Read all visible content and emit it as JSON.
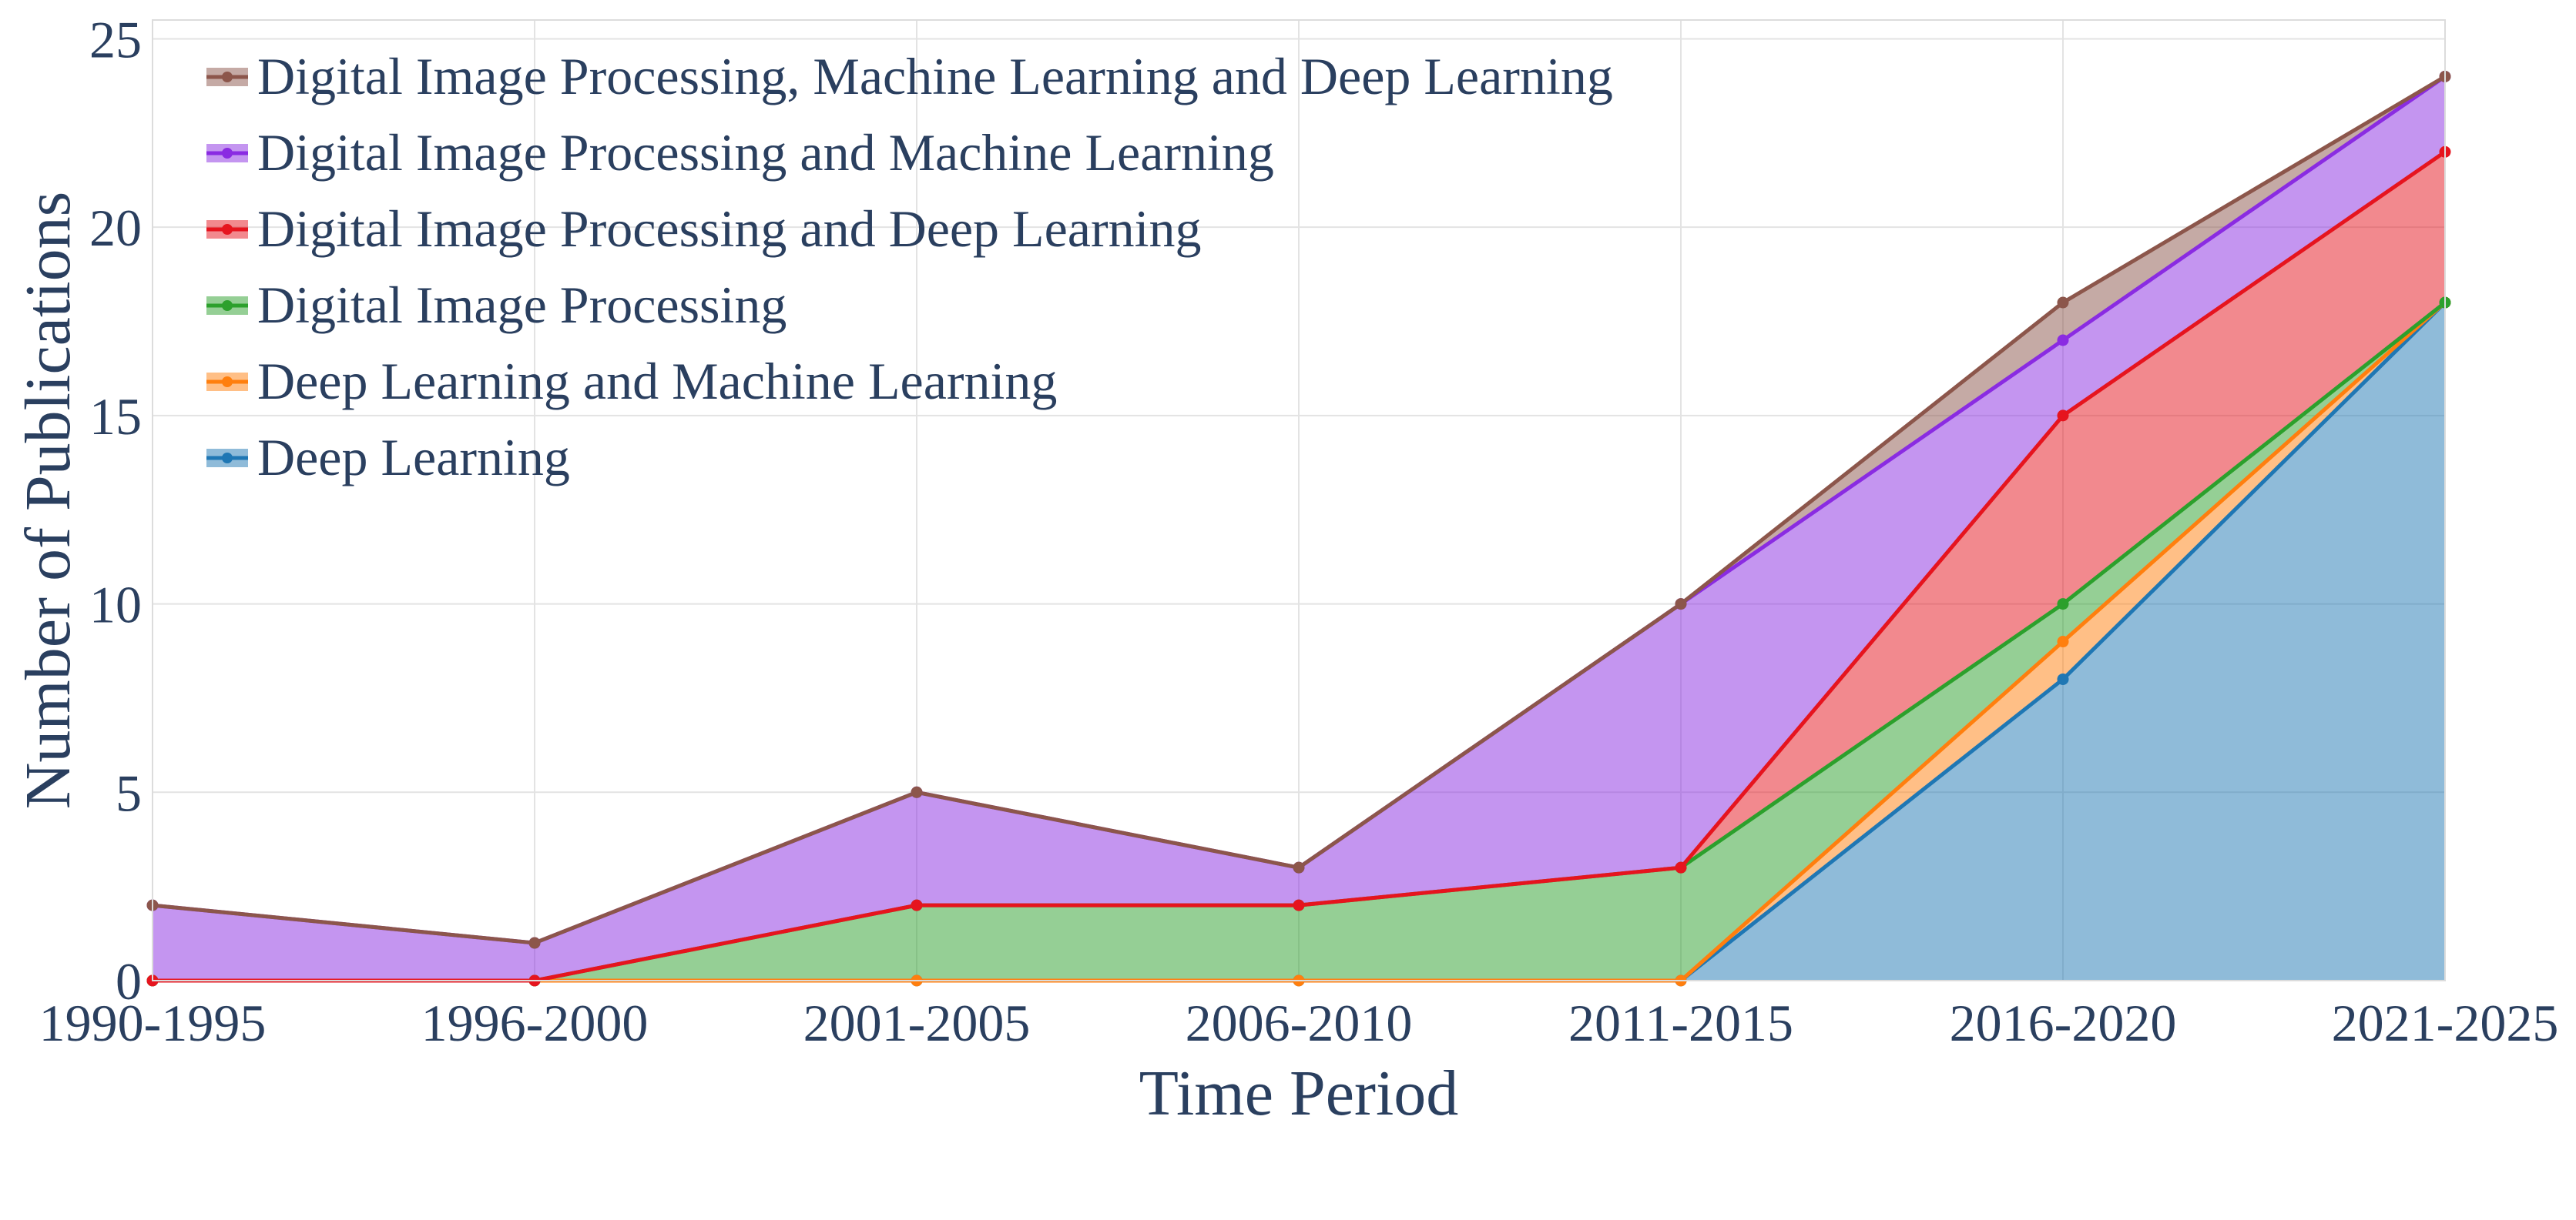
{
  "chart_data": {
    "type": "area",
    "stacked": true,
    "title": "",
    "xlabel": "Time Period",
    "ylabel": "Number of Publications",
    "categories": [
      "1990-1995",
      "1996-2000",
      "2001-2005",
      "2006-2010",
      "2011-2015",
      "2016-2020",
      "2021-2025"
    ],
    "ylim": [
      0,
      25.5
    ],
    "yticks": [
      0,
      5,
      10,
      15,
      20,
      25
    ],
    "grid": true,
    "legend_position": "top-left",
    "series": [
      {
        "name": "Deep Learning",
        "color": "#1f77b4",
        "values": [
          0,
          0,
          0,
          0,
          0,
          8,
          18
        ]
      },
      {
        "name": "Deep Learning and Machine Learning",
        "color": "#ff7f0e",
        "values": [
          0,
          0,
          0,
          0,
          0,
          1,
          0
        ]
      },
      {
        "name": "Digital Image Processing",
        "color": "#2ca02c",
        "values": [
          0,
          0,
          2,
          2,
          3,
          1,
          0
        ]
      },
      {
        "name": "Digital Image Processing and Deep Learning",
        "color": "#e6141e",
        "values": [
          0,
          0,
          0,
          0,
          0,
          5,
          4
        ]
      },
      {
        "name": "Digital Image Processing and Machine Learning",
        "color": "#8a2be2",
        "values": [
          2,
          1,
          3,
          1,
          7,
          2,
          2
        ]
      },
      {
        "name": "Digital Image Processing, Machine Learning and Deep Learning",
        "color": "#8c564b",
        "values": [
          0,
          0,
          0,
          0,
          0,
          1,
          0
        ]
      }
    ]
  }
}
